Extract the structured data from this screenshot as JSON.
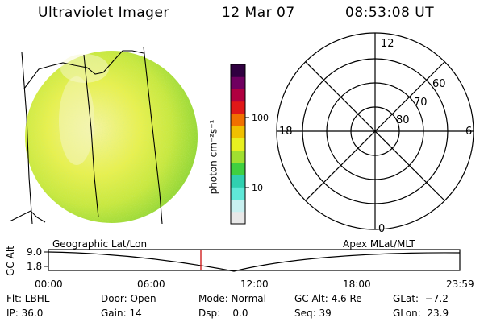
{
  "header": {
    "title": "Ultraviolet Imager",
    "date": "12 Mar 07",
    "time": "08:53:08 UT"
  },
  "colorbar": {
    "unit_label": "photon cm⁻²s⁻¹",
    "ticks": [
      "100",
      "10"
    ],
    "colors": [
      "#e8e8e8",
      "#c8f0f0",
      "#60e8d8",
      "#30d0b0",
      "#40d040",
      "#a0e030",
      "#e8f020",
      "#f0c000",
      "#f07000",
      "#e01818",
      "#b00040",
      "#700060",
      "#300040"
    ]
  },
  "polar": {
    "mlt_labels": {
      "top": "12",
      "left": "18",
      "right": "6",
      "bottom": "0"
    },
    "lat_labels": [
      "60",
      "70",
      "80"
    ]
  },
  "orbit": {
    "left_title": "Geographic Lat/Lon",
    "right_title": "Apex  MLat/MLT",
    "y_axis": "GC Alt",
    "y_ticks": [
      "9.0",
      "1.8"
    ],
    "x_ticks": [
      "00:00",
      "06:00",
      "12:00",
      "18:00",
      "23:59"
    ]
  },
  "info": {
    "filter": "Flt: LBHL",
    "ip": "IP: 36.0",
    "door": "Door: Open",
    "gain": "Gain: 14",
    "mode": "Mode: Normal",
    "dsp": "Dsp:    0.0",
    "gcalt": "GC Alt: 4.6 Re",
    "seq": "Seq: 39",
    "glat": "GLat:  −7.2",
    "glon": "GLon:  23.9"
  }
}
